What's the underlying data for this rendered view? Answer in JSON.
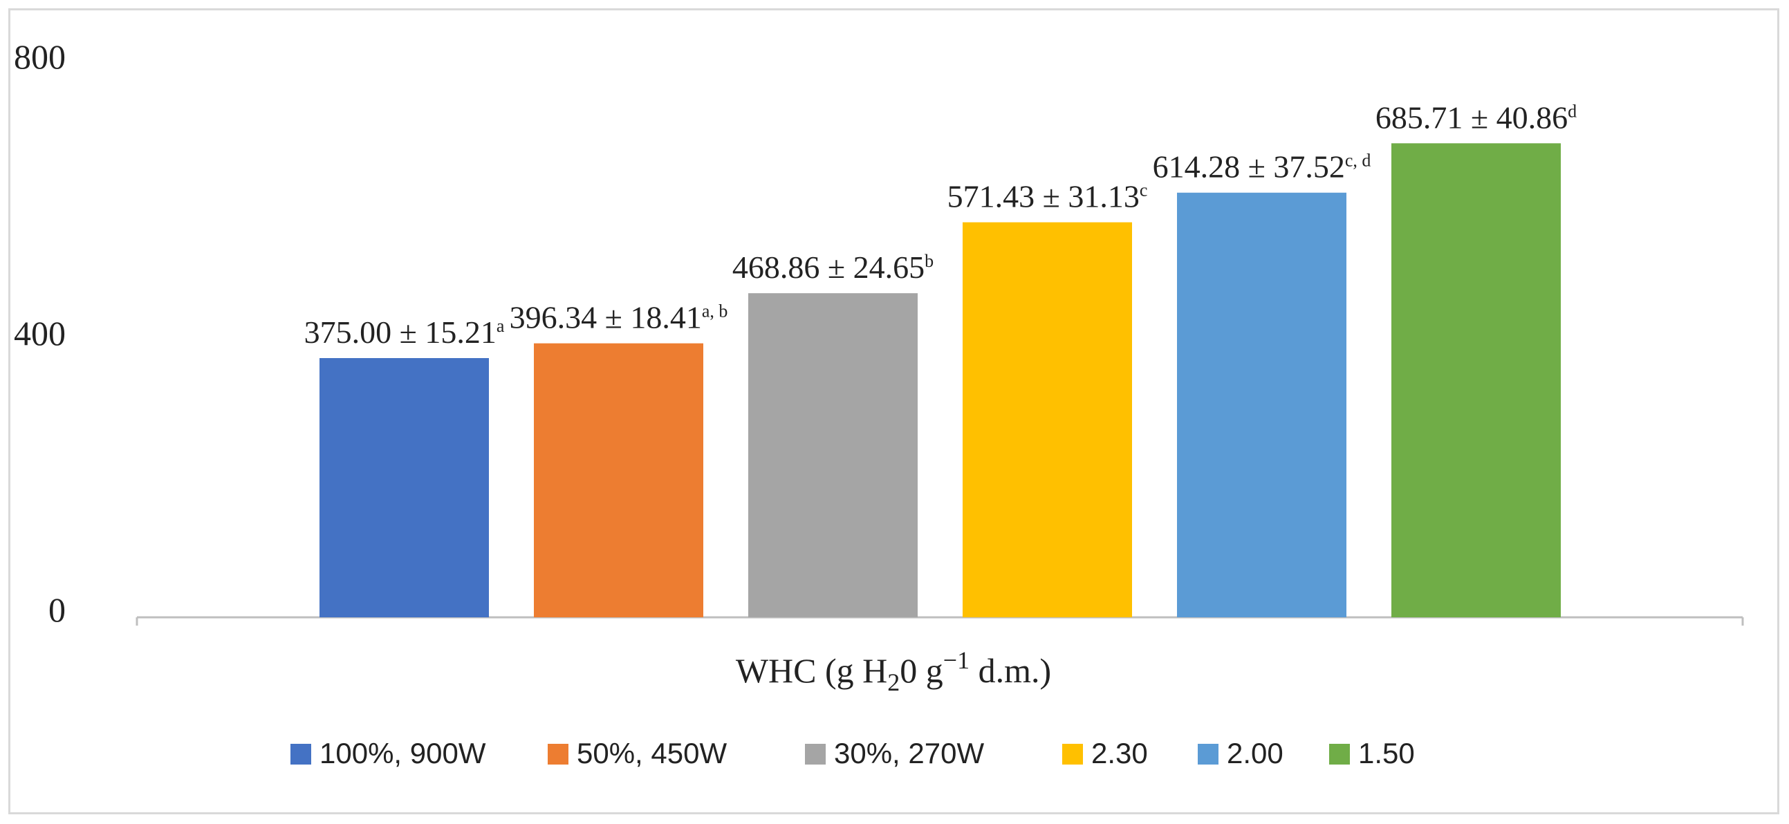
{
  "chart_data": {
    "type": "bar",
    "title": "",
    "xlabel_parts": {
      "a": "WHC (g H",
      "sub": "2",
      "b": "0 g",
      "sup": "−1",
      "c": " d.m.)"
    },
    "ylabel": "",
    "ylim": [
      0,
      800
    ],
    "yticks": [
      "0",
      "400",
      "800"
    ],
    "category": "WHC (g H20 g−1 d.m.)",
    "grid": false,
    "legend_position": "bottom",
    "series": [
      {
        "name": "100%, 900W",
        "value": 375.0,
        "label": "375.00 ± 15.21",
        "sup": "a",
        "color": "#4472C4"
      },
      {
        "name": "50%, 450W",
        "value": 396.34,
        "label": "396.34 ± 18.41",
        "sup": "a, b",
        "color": "#ED7D31"
      },
      {
        "name": "30%, 270W",
        "value": 468.86,
        "label": "468.86 ±  24.65",
        "sup": "b",
        "color": "#A5A5A5"
      },
      {
        "name": "2.30",
        "value": 571.43,
        "label": "571.43 ±  31.13",
        "sup": "c",
        "color": "#FFC000"
      },
      {
        "name": "2.00",
        "value": 614.28,
        "label": "614.28 ± 37.52",
        "sup": "c, d",
        "color": "#5B9BD5"
      },
      {
        "name": "1.50",
        "value": 685.71,
        "label": "685.71 ±  40.86",
        "sup": "d",
        "color": "#70AD47"
      }
    ]
  }
}
